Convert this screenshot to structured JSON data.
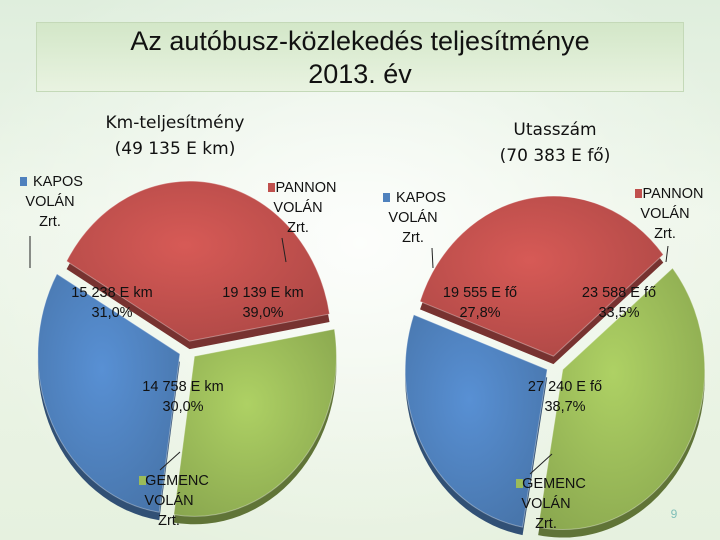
{
  "title_line1": "Az autóbusz-közlekedés teljesítménye",
  "title_line2": "2013. év",
  "chart_data": [
    {
      "type": "pie",
      "title_line1": "Km-teljesítmény",
      "title_line2": "(49 135 E km)",
      "slices": [
        {
          "legend": [
            "KAPOS",
            "VOLÁN",
            "Zrt."
          ],
          "label": [
            "15 238 E km",
            "31,0%"
          ],
          "value": 15238,
          "percent": 31.0,
          "color": "#4f81bd"
        },
        {
          "legend": [
            "PANNON",
            "VOLÁN",
            "Zrt."
          ],
          "label": [
            "19 139 E km",
            "39,0%"
          ],
          "value": 19139,
          "percent": 39.0,
          "color": "#c0504d"
        },
        {
          "legend": [
            "GEMENC",
            "VOLÁN",
            "Zrt."
          ],
          "label": [
            "14 758 E km",
            "30,0%"
          ],
          "value": 14758,
          "percent": 30.0,
          "color": "#9bbb59"
        }
      ]
    },
    {
      "type": "pie",
      "title_line1": "Utasszám",
      "title_line2": "(70 383 E fő)",
      "slices": [
        {
          "legend": [
            "KAPOS",
            "VOLÁN",
            "Zrt."
          ],
          "label": [
            "19 555 E fő",
            "27,8%"
          ],
          "value": 19555,
          "percent": 27.8,
          "color": "#4f81bd"
        },
        {
          "legend": [
            "PANNON",
            "VOLÁN",
            "Zrt."
          ],
          "label": [
            "23 588 E fő",
            "33,5%"
          ],
          "value": 23588,
          "percent": 33.5,
          "color": "#c0504d"
        },
        {
          "legend": [
            "GEMENC",
            "VOLÁN",
            "Zrt."
          ],
          "label": [
            "27 240 E fő",
            "38,7%"
          ],
          "value": 27240,
          "percent": 38.7,
          "color": "#9bbb59"
        }
      ]
    }
  ],
  "page_number": "9"
}
